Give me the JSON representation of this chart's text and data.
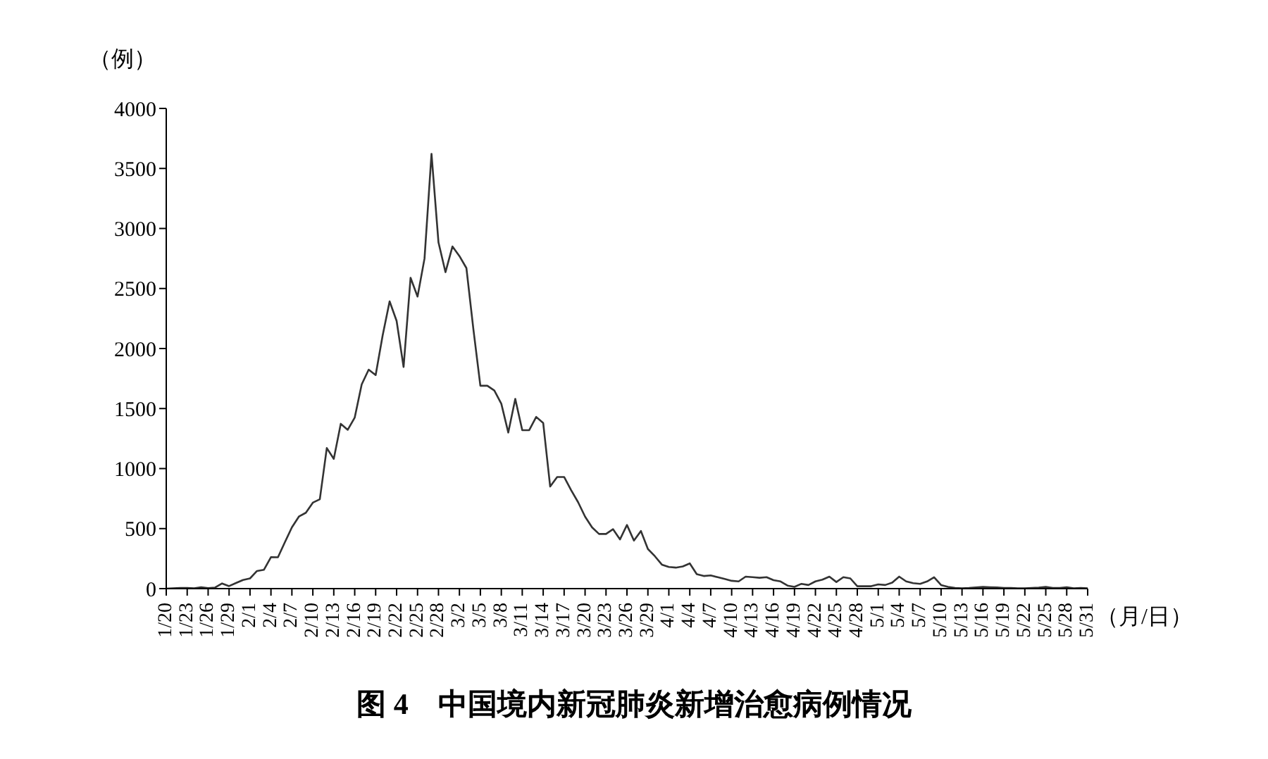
{
  "chart_data": {
    "type": "line",
    "title": "图 4　中国境内新冠肺炎新增治愈病例情况",
    "xlabel": "（月/日）",
    "ylabel": "（例）",
    "categories": [
      "1/20",
      null,
      null,
      "1/23",
      null,
      null,
      "1/26",
      null,
      null,
      "1/29",
      null,
      null,
      "2/1",
      null,
      null,
      "2/4",
      null,
      null,
      "2/7",
      null,
      null,
      "2/10",
      null,
      null,
      "2/13",
      null,
      null,
      "2/16",
      null,
      null,
      "2/19",
      null,
      null,
      "2/22",
      null,
      null,
      "2/25",
      null,
      null,
      "2/28",
      null,
      null,
      "3/2",
      null,
      null,
      "3/5",
      null,
      null,
      "3/8",
      null,
      null,
      "3/11",
      null,
      null,
      "3/14",
      null,
      null,
      "3/17",
      null,
      null,
      "3/20",
      null,
      null,
      "3/23",
      null,
      null,
      "3/26",
      null,
      null,
      "3/29",
      null,
      null,
      "4/1",
      null,
      null,
      "4/4",
      null,
      null,
      "4/7",
      null,
      null,
      "4/10",
      null,
      null,
      "4/13",
      null,
      null,
      "4/16",
      null,
      null,
      "4/19",
      null,
      null,
      "4/22",
      null,
      null,
      "4/25",
      null,
      null,
      "4/28",
      null,
      null,
      "5/1",
      null,
      null,
      "5/4",
      null,
      null,
      "5/7",
      null,
      null,
      "5/10",
      null,
      null,
      "5/13",
      null,
      null,
      "5/16",
      null,
      null,
      "5/19",
      null,
      null,
      "5/22",
      null,
      null,
      "5/25",
      null,
      null,
      "5/28",
      null,
      null,
      "5/31"
    ],
    "series": [
      {
        "color": "#333333",
        "values": [
          0,
          3,
          5,
          6,
          3,
          11,
          4,
          9,
          43,
          21,
          47,
          72,
          85,
          147,
          157,
          262,
          261,
          387,
          510,
          600,
          632,
          716,
          744,
          1171,
          1081,
          1373,
          1323,
          1425,
          1701,
          1824,
          1779,
          2109,
          2393,
          2230,
          1846,
          2589,
          2433,
          2750,
          3622,
          2884,
          2636,
          2850,
          2770,
          2670,
          2160,
          1690,
          1690,
          1650,
          1540,
          1300,
          1580,
          1320,
          1320,
          1430,
          1380,
          850,
          930,
          930,
          820,
          720,
          600,
          510,
          455,
          455,
          495,
          410,
          530,
          400,
          480,
          330,
          270,
          200,
          180,
          175,
          185,
          210,
          120,
          105,
          110,
          95,
          80,
          65,
          60,
          100,
          95,
          90,
          95,
          70,
          60,
          25,
          15,
          40,
          30,
          60,
          75,
          100,
          55,
          95,
          85,
          20,
          20,
          20,
          35,
          30,
          50,
          100,
          60,
          45,
          40,
          60,
          95,
          30,
          15,
          5,
          3,
          5,
          10,
          15,
          12,
          10,
          5,
          5,
          3,
          3,
          5,
          8,
          15,
          5,
          5,
          12,
          3,
          5,
          2
        ]
      }
    ],
    "ylim": [
      0,
      4000
    ],
    "yticks": [
      0,
      500,
      1000,
      1500,
      2000,
      2500,
      3000,
      3500,
      4000
    ],
    "grid": false,
    "legend": false,
    "marker": "none",
    "line_style": "solid"
  }
}
